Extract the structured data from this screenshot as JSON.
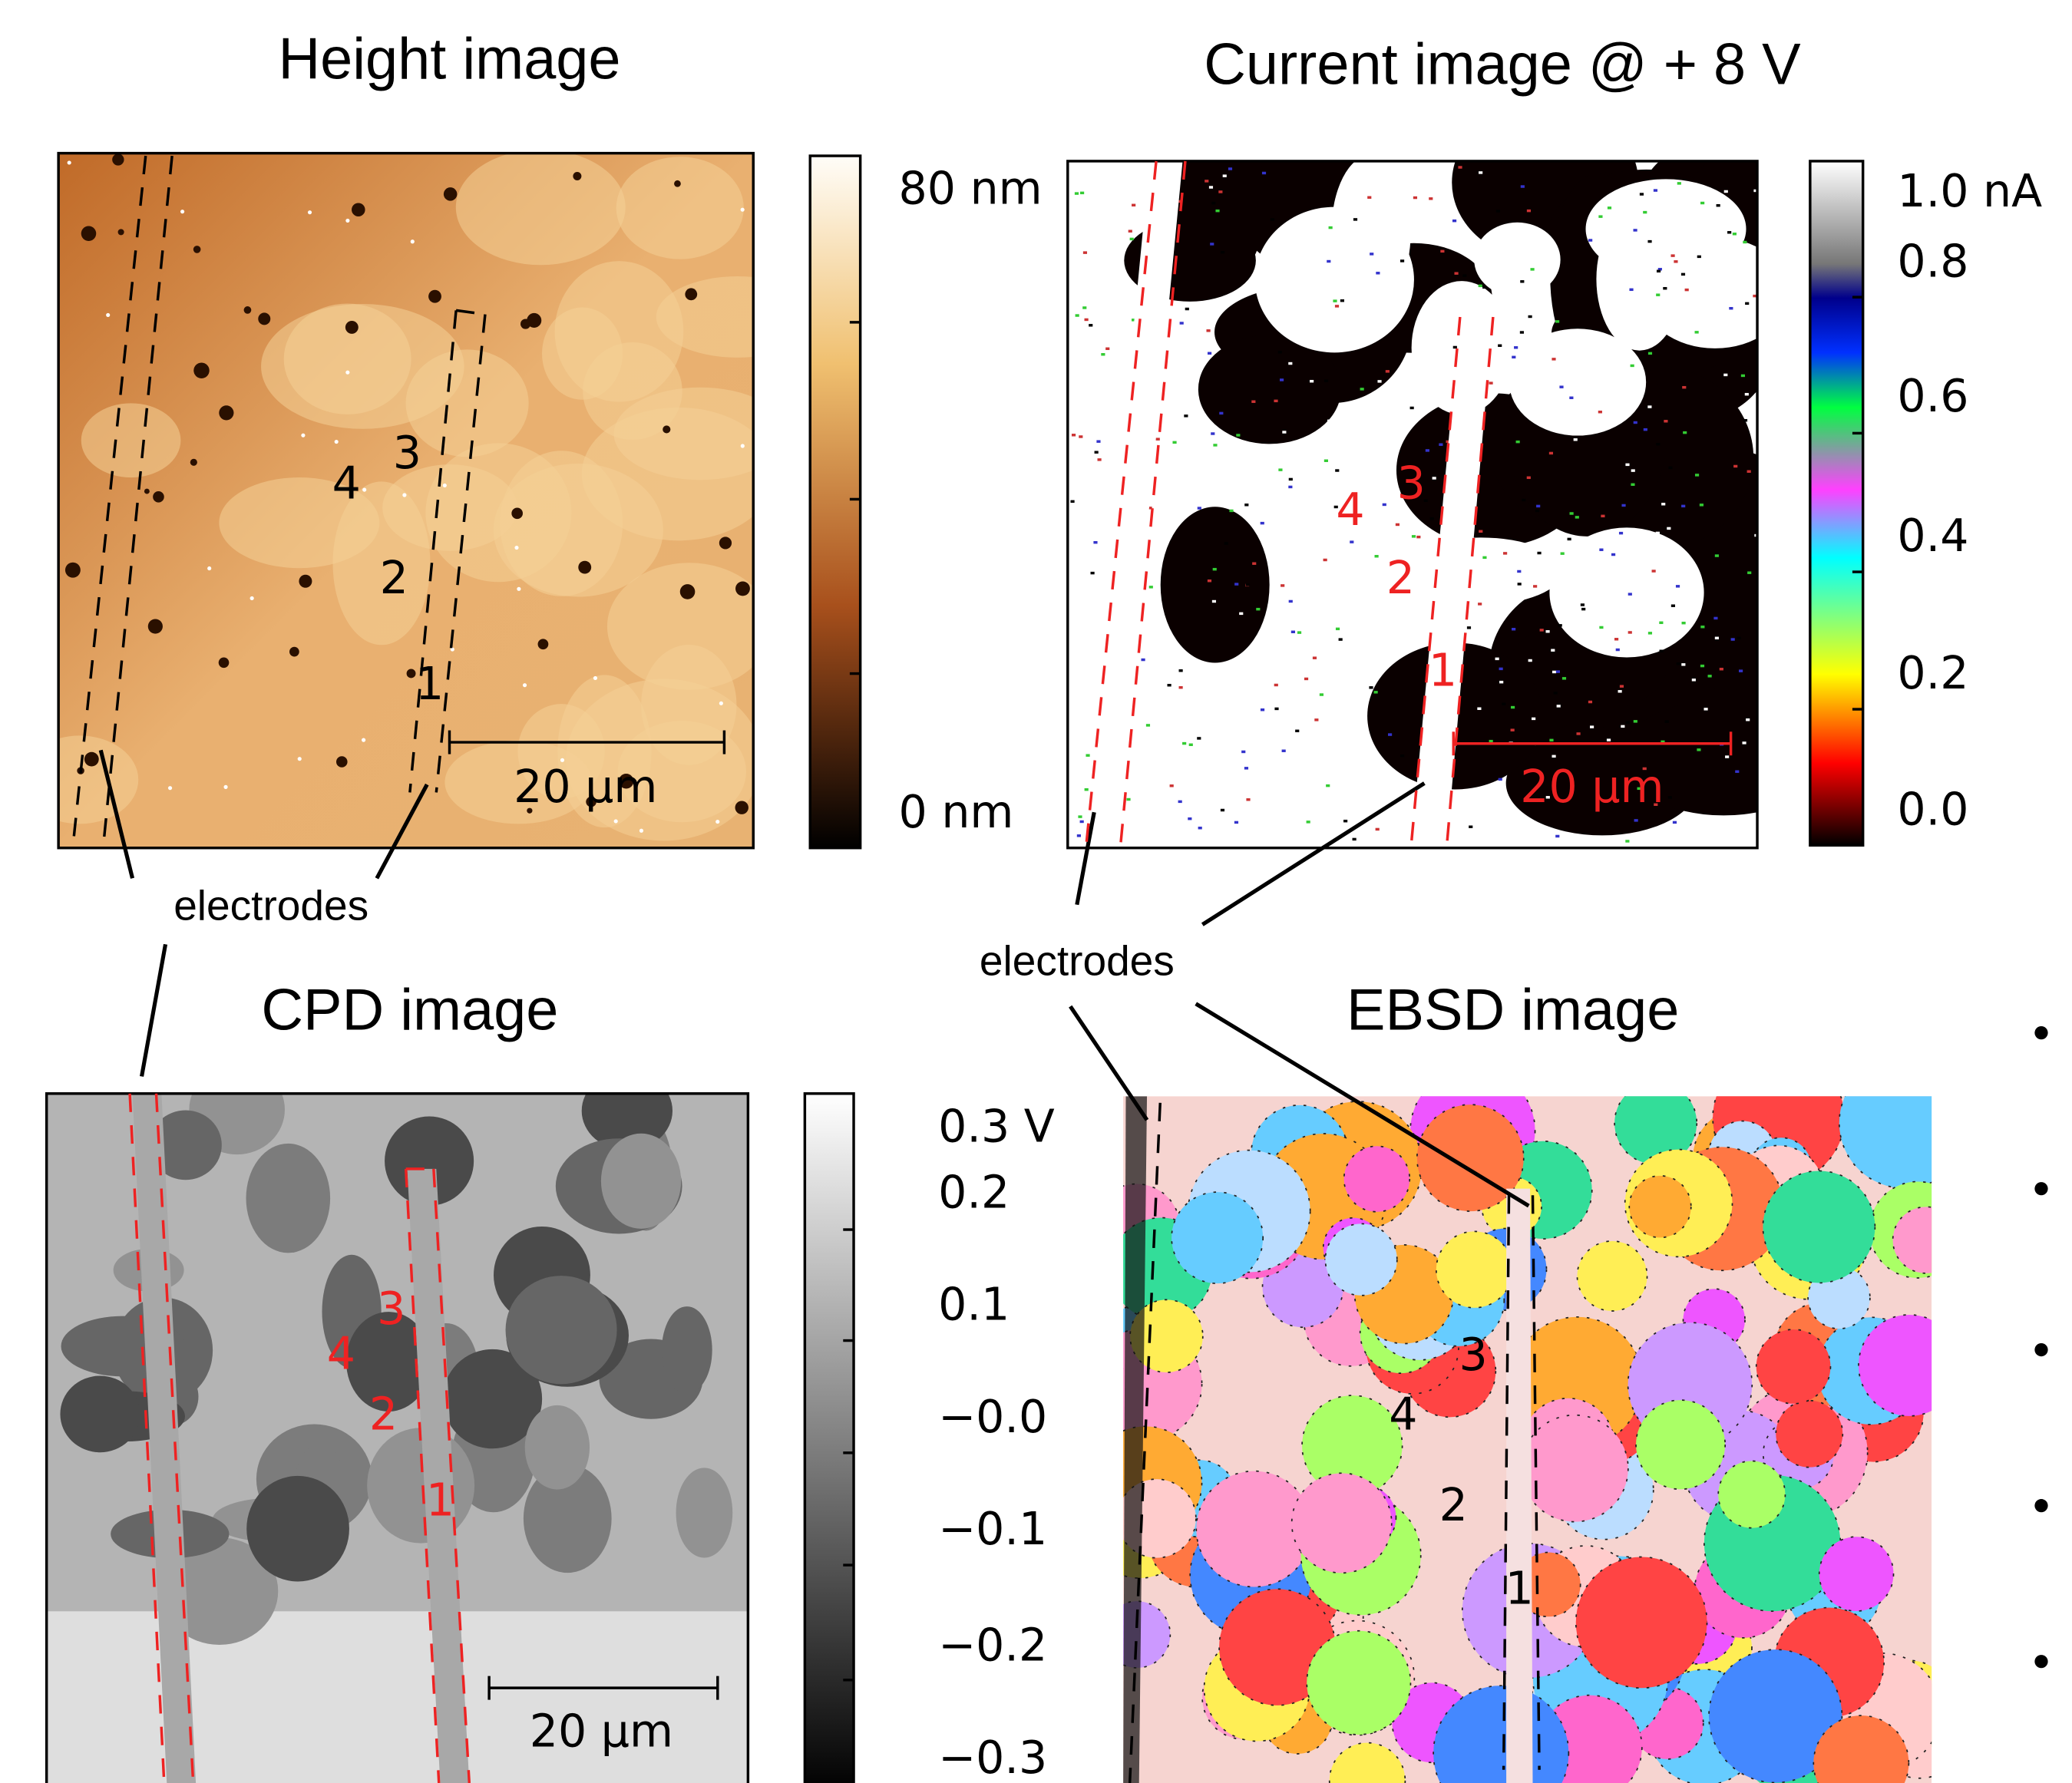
{
  "panels": [
    {
      "title": "Height image",
      "colorbar_labels": [
        "80 nm",
        "0 nm"
      ],
      "markers": [
        "1",
        "2",
        "3",
        "4"
      ],
      "scale_bar": "20 µm",
      "electrodes_label": "electrodes"
    },
    {
      "title": "Current image @ + 8 V",
      "colorbar_labels": [
        "1.0 nA",
        "0.8",
        "0.6",
        "0.4",
        "0.2",
        "0.0"
      ],
      "markers": [
        "1",
        "2",
        "3",
        "4"
      ],
      "scale_bar": "20 µm",
      "electrodes_label": "electrodes"
    },
    {
      "title": "CPD image",
      "colorbar_labels": [
        "0.3 V",
        "0.2",
        "0.1",
        "−0.0",
        "−0.1",
        "−0.2",
        "−0.3"
      ],
      "markers": [
        "1",
        "2",
        "3",
        "4"
      ],
      "scale_bar": "20 µm"
    },
    {
      "title": "EBSD image",
      "markers": [
        "1",
        "2",
        "3",
        "4"
      ]
    }
  ]
}
